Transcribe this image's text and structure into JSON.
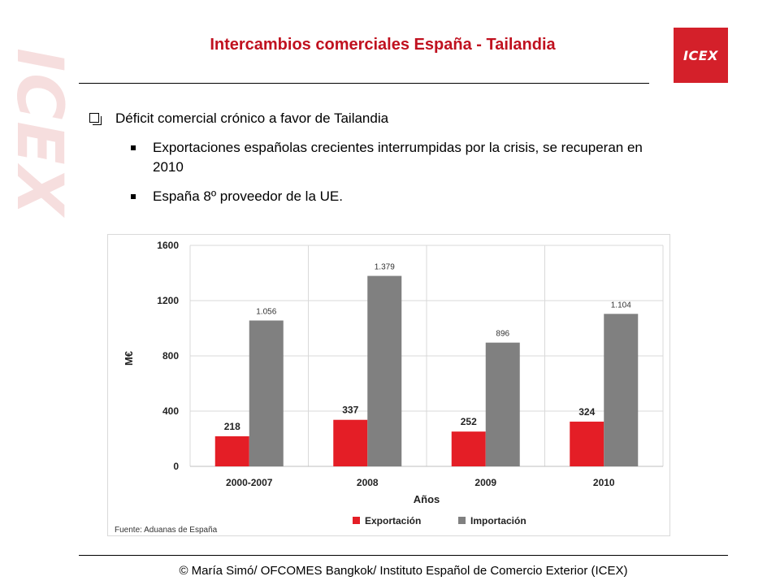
{
  "title": "Intercambios comerciales España - Tailandia",
  "logo": "ICEX",
  "watermark": "ICEX",
  "bullets": {
    "main": "Déficit comercial crónico a favor de Tailandia",
    "sub1": "Exportaciones españolas crecientes interrumpidas por la crisis, se recuperan en 2010",
    "sub2": "España 8º proveedor de la UE."
  },
  "footer": "© María Simó/ OFCOMES Bangkok/ Instituto Español de Comercio Exterior (ICEX)",
  "colors": {
    "export": "#e41e26",
    "import": "#808080",
    "title": "#c0111f"
  },
  "chart_data": {
    "type": "bar",
    "categories": [
      "2000-2007",
      "2008",
      "2009",
      "2010"
    ],
    "series": [
      {
        "name": "Exportación",
        "values": [
          218,
          337,
          252,
          324
        ],
        "labels": [
          "218",
          "337",
          "252",
          "324"
        ]
      },
      {
        "name": "Importación",
        "values": [
          1056,
          1379,
          896,
          1104
        ],
        "labels": [
          "1.056",
          "1.379",
          "896",
          "1.104"
        ]
      }
    ],
    "xlabel": "Años",
    "ylabel": "M€",
    "ylim": [
      0,
      1600
    ],
    "yticks": [
      0,
      400,
      800,
      1200,
      1600
    ],
    "grid": true,
    "legend": "bottom",
    "source": "Fuente: Aduanas de España"
  }
}
